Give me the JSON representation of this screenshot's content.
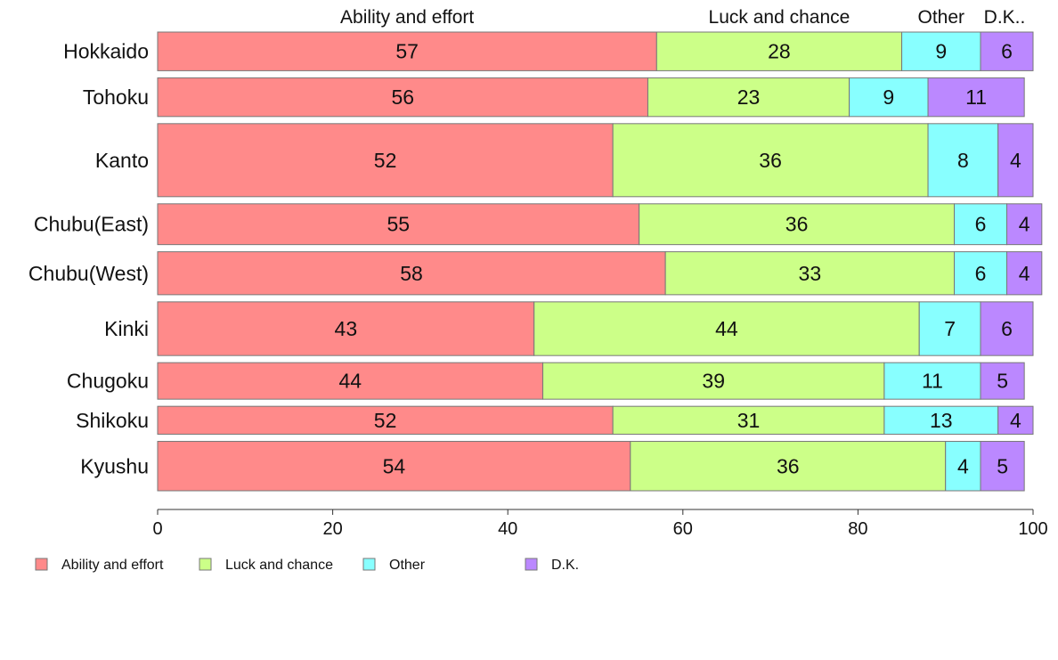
{
  "chart_data": {
    "type": "bar",
    "orientation": "horizontal",
    "stacked": true,
    "column_headers": [
      "Ability and effort",
      "Luck and chance",
      "Other",
      "D.K.."
    ],
    "categories": [
      "Hokkaido",
      "Tohoku",
      "Kanto",
      "Chubu(East)",
      "Chubu(West)",
      "Kinki",
      "Chugoku",
      "Shikoku",
      "Kyushu"
    ],
    "bar_weights": [
      0.9,
      0.9,
      1.7,
      0.95,
      1.0,
      1.25,
      0.85,
      0.65,
      1.15
    ],
    "series": [
      {
        "name": "Ability and effort",
        "color": "#ff8a8a",
        "values": [
          57,
          56,
          52,
          55,
          58,
          43,
          44,
          52,
          54
        ]
      },
      {
        "name": "Luck and chance",
        "color": "#ccff88",
        "values": [
          28,
          23,
          36,
          36,
          33,
          44,
          39,
          31,
          36
        ]
      },
      {
        "name": "Other",
        "color": "#88ffff",
        "values": [
          9,
          9,
          8,
          6,
          6,
          7,
          11,
          13,
          4
        ]
      },
      {
        "name": "D.K.",
        "color": "#bb88ff",
        "values": [
          6,
          11,
          4,
          4,
          4,
          6,
          5,
          4,
          5
        ]
      }
    ],
    "xlim": [
      0,
      100
    ],
    "xticks": [
      0,
      20,
      40,
      60,
      80,
      100
    ],
    "legend_position": "bottom-left",
    "grid": false
  }
}
